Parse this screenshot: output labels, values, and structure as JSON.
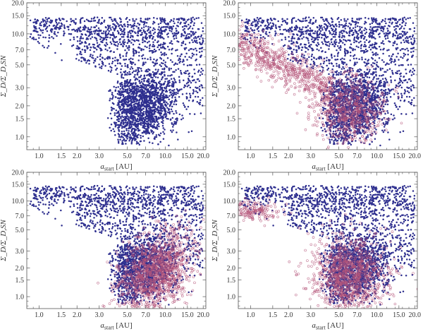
{
  "chart_data": [
    {
      "type": "scatter",
      "panel": "top-left",
      "xscale": "log",
      "yscale": "log",
      "xlim": [
        0.8,
        21
      ],
      "ylim": [
        0.75,
        20
      ],
      "xlabel_main": "a",
      "xlabel_sub": "start",
      "xlabel_unit": " [AU]",
      "ylabel": "Σ_D/Σ_D,SN",
      "xticks": [
        1.0,
        1.5,
        2.0,
        3.0,
        5.0,
        7.0,
        10.0,
        15.0,
        20.0
      ],
      "xtick_labels": [
        "1.0",
        "1.5",
        "2.0",
        "3.0",
        "5.0",
        "7.0",
        "10.0",
        "15.0",
        "20.0"
      ],
      "yticks": [
        1.0,
        1.5,
        2.0,
        3.0,
        5.0,
        7.0,
        10.0,
        15.0,
        20.0
      ],
      "ytick_labels": [
        "1.0",
        "1.5",
        "2.0",
        "3.0",
        "5.0",
        "7.0",
        "10.0",
        "15.0",
        "20.0"
      ],
      "series": [
        {
          "name": "filled",
          "marker": "filled-dot",
          "color": "#2e2f8f",
          "approx_points": 2000,
          "clusters": [
            {
              "x_range": [
                0.9,
                20
              ],
              "y_range": [
                5,
                15
              ],
              "description": "sparse upper band"
            },
            {
              "x_range": [
                4.0,
                11.0
              ],
              "y_range": [
                0.9,
                3.0
              ],
              "description": "dense core"
            },
            {
              "x_range": [
                3.0,
                20
              ],
              "y_range": [
                2.0,
                8.0
              ],
              "description": "wedge"
            }
          ]
        }
      ]
    },
    {
      "type": "scatter",
      "panel": "top-right",
      "xscale": "log",
      "yscale": "log",
      "xlim": [
        0.8,
        21
      ],
      "ylim": [
        0.75,
        20
      ],
      "xlabel_main": "a",
      "xlabel_sub": "start",
      "xlabel_unit": " [AU]",
      "ylabel": "Σ_D/Σ_D,SN",
      "xticks": [
        1.0,
        1.5,
        2.0,
        3.0,
        5.0,
        7.0,
        10.0,
        15.0,
        20.0
      ],
      "xtick_labels": [
        "1.0",
        "1.5",
        "2.0",
        "3.0",
        "5.0",
        "7.0",
        "10.0",
        "15.0",
        "20.0"
      ],
      "yticks": [
        1.0,
        1.5,
        2.0,
        3.0,
        5.0,
        7.0,
        10.0,
        15.0,
        20.0
      ],
      "ytick_labels": [
        "1.0",
        "1.5",
        "2.0",
        "3.0",
        "5.0",
        "7.0",
        "10.0",
        "15.0",
        "20.0"
      ],
      "series": [
        {
          "name": "filled",
          "marker": "filled-dot",
          "color": "#2e2f8f",
          "approx_points": 2000
        },
        {
          "name": "open",
          "marker": "open-circle",
          "color": "#b5567a",
          "approx_points": 1300,
          "clusters": [
            {
              "x_range": [
                0.8,
                3.5
              ],
              "y_range": [
                3.0,
                9.0
              ],
              "description": "diagonal band from upper-left"
            },
            {
              "x_range": [
                4.0,
                10.0
              ],
              "y_range": [
                1.0,
                3.0
              ],
              "description": "core"
            }
          ]
        }
      ]
    },
    {
      "type": "scatter",
      "panel": "bottom-left",
      "xscale": "log",
      "yscale": "log",
      "xlim": [
        0.8,
        21
      ],
      "ylim": [
        0.75,
        20
      ],
      "xlabel_main": "a",
      "xlabel_sub": "start",
      "xlabel_unit": " [AU]",
      "ylabel": "Σ_D/Σ_D,SN",
      "xticks": [
        1.0,
        1.5,
        2.0,
        3.0,
        5.0,
        7.0,
        10.0,
        15.0,
        20.0
      ],
      "xtick_labels": [
        "1.0",
        "1.5",
        "2.0",
        "3.0",
        "5.0",
        "7.0",
        "10.0",
        "15.0",
        "20.0"
      ],
      "yticks": [
        1.0,
        1.5,
        2.0,
        3.0,
        5.0,
        7.0,
        10.0,
        15.0,
        20.0
      ],
      "ytick_labels": [
        "1.0",
        "1.5",
        "2.0",
        "3.0",
        "5.0",
        "7.0",
        "10.0",
        "15.0",
        "20.0"
      ],
      "series": [
        {
          "name": "filled",
          "marker": "filled-dot",
          "color": "#2e2f8f",
          "approx_points": 2000
        },
        {
          "name": "open",
          "marker": "open-circle",
          "color": "#b5567a",
          "approx_points": 1300,
          "clusters": [
            {
              "x_range": [
                5.0,
                20
              ],
              "y_range": [
                0.8,
                6.0
              ],
              "description": "shifted toward larger a_start"
            }
          ]
        }
      ]
    },
    {
      "type": "scatter",
      "panel": "bottom-right",
      "xscale": "log",
      "yscale": "log",
      "xlim": [
        0.8,
        21
      ],
      "ylim": [
        0.75,
        20
      ],
      "xlabel_main": "a",
      "xlabel_sub": "start",
      "xlabel_unit": " [AU]",
      "ylabel": "Σ_D/Σ_D,SN",
      "xticks": [
        1.0,
        1.5,
        2.0,
        3.0,
        5.0,
        7.0,
        10.0,
        15.0,
        20.0
      ],
      "xtick_labels": [
        "1.0",
        "1.5",
        "2.0",
        "3.0",
        "5.0",
        "7.0",
        "10.0",
        "15.0",
        "20.0"
      ],
      "yticks": [
        1.0,
        1.5,
        2.0,
        3.0,
        5.0,
        7.0,
        10.0,
        15.0,
        20.0
      ],
      "ytick_labels": [
        "1.0",
        "1.5",
        "2.0",
        "3.0",
        "5.0",
        "7.0",
        "10.0",
        "15.0",
        "20.0"
      ],
      "series": [
        {
          "name": "filled",
          "marker": "filled-dot",
          "color": "#2e2f8f",
          "approx_points": 2000
        },
        {
          "name": "open",
          "marker": "open-circle",
          "color": "#b5567a",
          "approx_points": 1300,
          "clusters": [
            {
              "x_range": [
                0.8,
                2.0
              ],
              "y_range": [
                6.0,
                10.0
              ],
              "description": "upper-left patch"
            },
            {
              "x_range": [
                3.5,
                12.0
              ],
              "y_range": [
                0.8,
                4.0
              ],
              "description": "core"
            }
          ]
        }
      ]
    }
  ]
}
